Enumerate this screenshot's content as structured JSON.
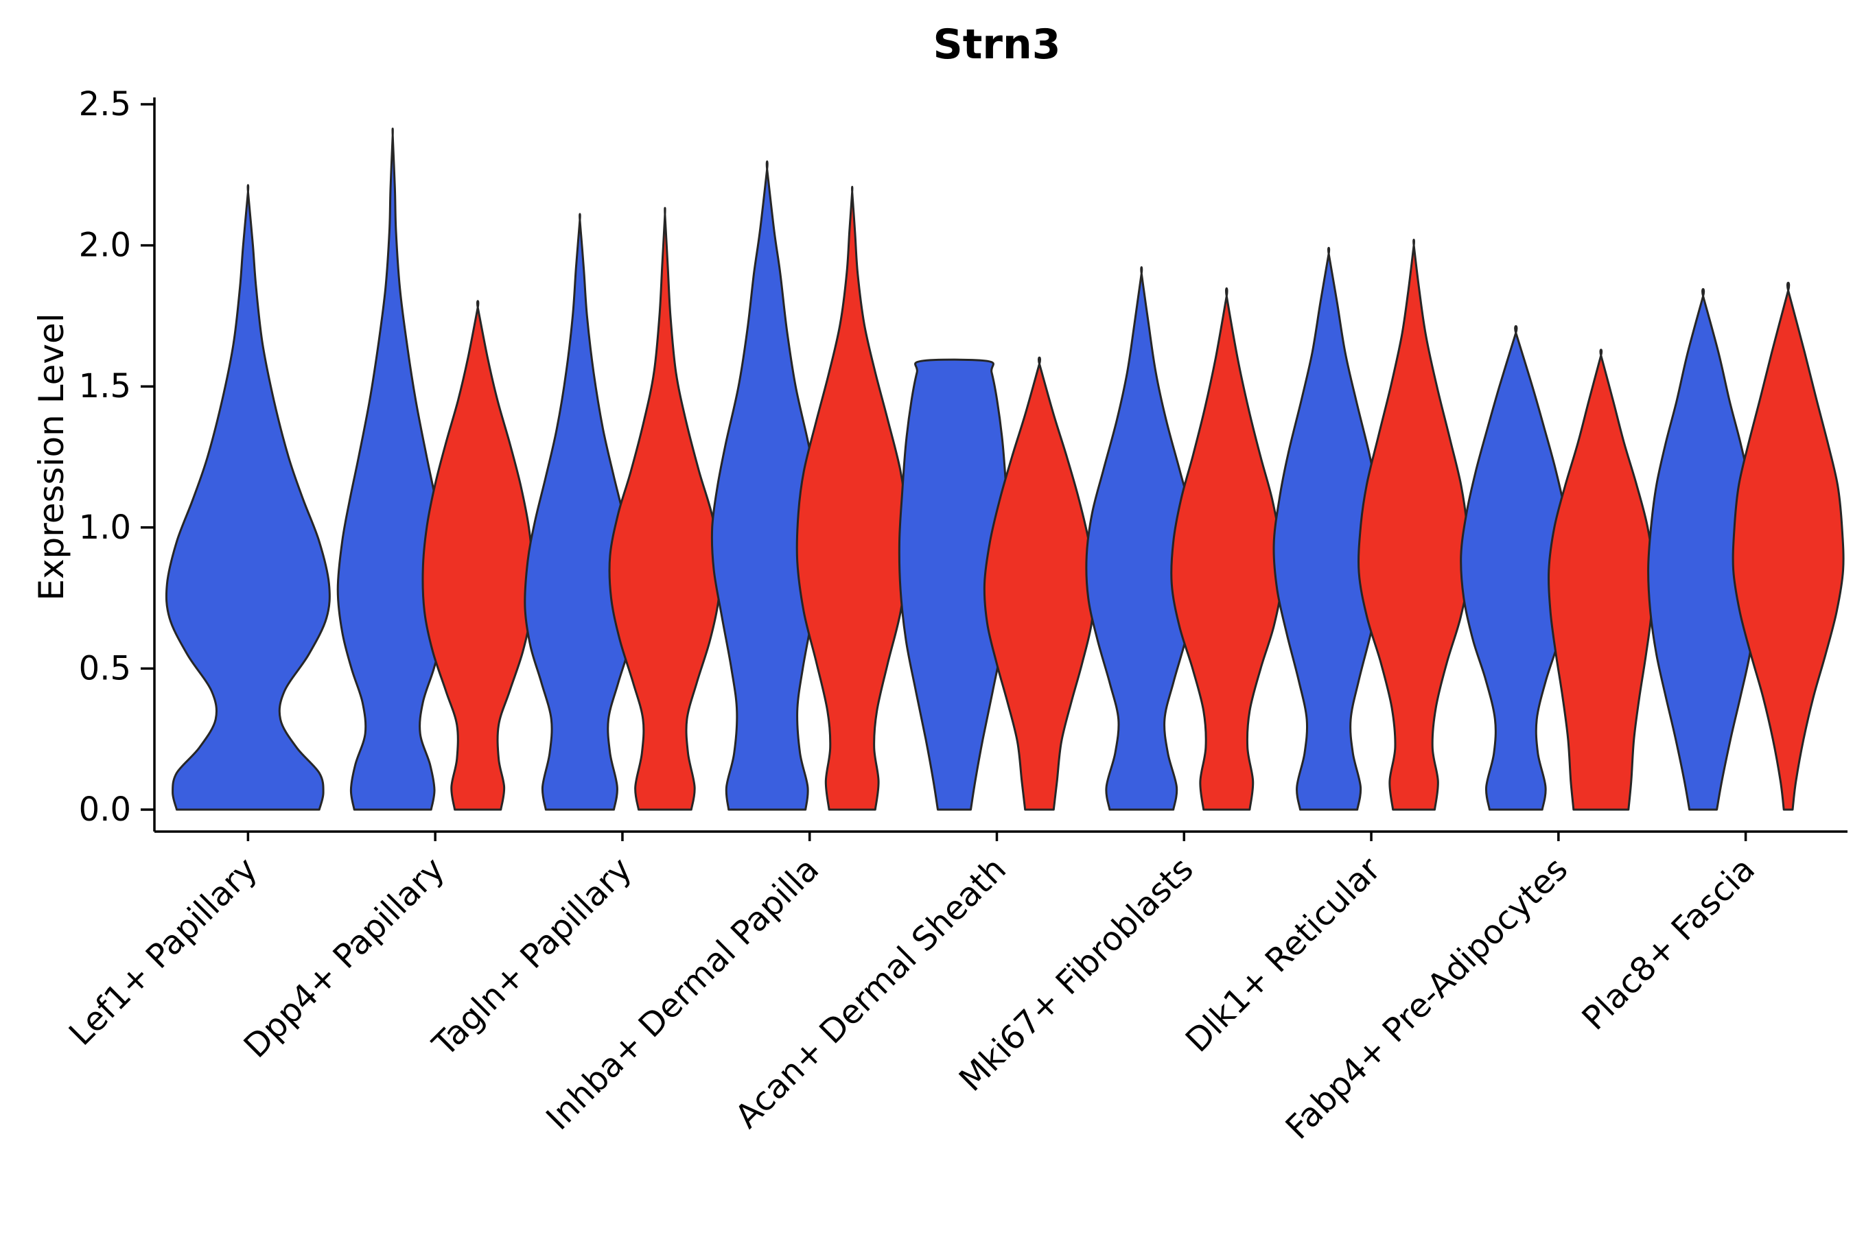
{
  "title": "Strn3",
  "chart_data": {
    "type": "violin",
    "title": "Strn3",
    "ylabel": "Expression Level",
    "xlabel": "",
    "ylim": [
      0,
      2.5
    ],
    "yticks": [
      "0.0",
      "0.5",
      "1.0",
      "1.5",
      "2.0",
      "2.5"
    ],
    "grid": false,
    "legend": "none",
    "x_tick_rotation": 45,
    "categories": [
      "Lef1+ Papillary",
      "Dpp4+ Papillary",
      "Tagln+ Papillary",
      "Inhba+ Dermal Papilla",
      "Acan+ Dermal Sheath",
      "Mki67+ Fibroblasts",
      "Dlk1+ Reticular",
      "Fabp4+ Pre-Adipocytes",
      "Plac8+ Fascia"
    ],
    "series": [
      {
        "name": "blue",
        "color": "#3A5FDF"
      },
      {
        "name": "red",
        "color": "#EE3124"
      }
    ],
    "style": {
      "stroke": "#262626",
      "stroke_width": 3,
      "background": "#FFFFFF"
    },
    "violins": [
      {
        "category": "Lef1+ Papillary",
        "series": "blue",
        "cat_index": 0,
        "side": "center",
        "max": 2.19,
        "profile": [
          [
            0,
            0.88
          ],
          [
            0.06,
            0.93
          ],
          [
            0.13,
            0.88
          ],
          [
            0.22,
            0.6
          ],
          [
            0.32,
            0.4
          ],
          [
            0.42,
            0.45
          ],
          [
            0.55,
            0.75
          ],
          [
            0.68,
            0.97
          ],
          [
            0.8,
            1.0
          ],
          [
            0.95,
            0.88
          ],
          [
            1.1,
            0.68
          ],
          [
            1.25,
            0.5
          ],
          [
            1.45,
            0.32
          ],
          [
            1.65,
            0.18
          ],
          [
            1.85,
            0.1
          ],
          [
            2.0,
            0.06
          ],
          [
            2.19,
            0
          ]
        ]
      },
      {
        "category": "Dpp4+ Papillary",
        "series": "blue",
        "cat_index": 1,
        "side": "left",
        "max": 2.39,
        "profile": [
          [
            0,
            0.7
          ],
          [
            0.07,
            0.76
          ],
          [
            0.16,
            0.68
          ],
          [
            0.27,
            0.5
          ],
          [
            0.38,
            0.55
          ],
          [
            0.5,
            0.75
          ],
          [
            0.63,
            0.92
          ],
          [
            0.78,
            1.0
          ],
          [
            0.95,
            0.92
          ],
          [
            1.1,
            0.78
          ],
          [
            1.25,
            0.62
          ],
          [
            1.45,
            0.42
          ],
          [
            1.65,
            0.26
          ],
          [
            1.85,
            0.13
          ],
          [
            2.05,
            0.06
          ],
          [
            2.2,
            0.04
          ],
          [
            2.39,
            0
          ]
        ]
      },
      {
        "category": "Dpp4+ Papillary",
        "series": "red",
        "cat_index": 1,
        "side": "right",
        "max": 1.78,
        "profile": [
          [
            0,
            0.42
          ],
          [
            0.08,
            0.48
          ],
          [
            0.18,
            0.38
          ],
          [
            0.3,
            0.38
          ],
          [
            0.42,
            0.58
          ],
          [
            0.56,
            0.82
          ],
          [
            0.7,
            0.97
          ],
          [
            0.85,
            1.0
          ],
          [
            1.0,
            0.93
          ],
          [
            1.15,
            0.78
          ],
          [
            1.3,
            0.58
          ],
          [
            1.45,
            0.36
          ],
          [
            1.6,
            0.18
          ],
          [
            1.78,
            0
          ]
        ]
      },
      {
        "category": "Tagln+ Papillary",
        "series": "blue",
        "cat_index": 2,
        "side": "left",
        "max": 2.09,
        "profile": [
          [
            0,
            0.62
          ],
          [
            0.08,
            0.68
          ],
          [
            0.2,
            0.55
          ],
          [
            0.32,
            0.52
          ],
          [
            0.45,
            0.7
          ],
          [
            0.58,
            0.9
          ],
          [
            0.72,
            1.0
          ],
          [
            0.88,
            0.95
          ],
          [
            1.02,
            0.82
          ],
          [
            1.18,
            0.62
          ],
          [
            1.35,
            0.42
          ],
          [
            1.55,
            0.25
          ],
          [
            1.75,
            0.13
          ],
          [
            1.92,
            0.07
          ],
          [
            2.09,
            0
          ]
        ]
      },
      {
        "category": "Tagln+ Papillary",
        "series": "red",
        "cat_index": 2,
        "side": "right",
        "max": 2.11,
        "profile": [
          [
            0,
            0.48
          ],
          [
            0.08,
            0.54
          ],
          [
            0.2,
            0.42
          ],
          [
            0.32,
            0.4
          ],
          [
            0.45,
            0.58
          ],
          [
            0.6,
            0.82
          ],
          [
            0.75,
            0.98
          ],
          [
            0.9,
            1.0
          ],
          [
            1.05,
            0.85
          ],
          [
            1.2,
            0.62
          ],
          [
            1.38,
            0.38
          ],
          [
            1.55,
            0.2
          ],
          [
            1.75,
            0.1
          ],
          [
            1.93,
            0.05
          ],
          [
            2.11,
            0
          ]
        ]
      },
      {
        "category": "Inhba+ Dermal Papilla",
        "series": "blue",
        "cat_index": 3,
        "side": "left",
        "max": 2.27,
        "profile": [
          [
            0,
            0.7
          ],
          [
            0.08,
            0.74
          ],
          [
            0.2,
            0.6
          ],
          [
            0.35,
            0.55
          ],
          [
            0.5,
            0.65
          ],
          [
            0.68,
            0.82
          ],
          [
            0.85,
            0.97
          ],
          [
            1.0,
            1.0
          ],
          [
            1.15,
            0.9
          ],
          [
            1.3,
            0.75
          ],
          [
            1.5,
            0.52
          ],
          [
            1.7,
            0.36
          ],
          [
            1.9,
            0.24
          ],
          [
            2.05,
            0.13
          ],
          [
            2.27,
            0
          ]
        ]
      },
      {
        "category": "Inhba+ Dermal Papilla",
        "series": "red",
        "cat_index": 3,
        "side": "right",
        "max": 2.19,
        "profile": [
          [
            0,
            0.42
          ],
          [
            0.1,
            0.48
          ],
          [
            0.22,
            0.4
          ],
          [
            0.35,
            0.45
          ],
          [
            0.52,
            0.65
          ],
          [
            0.7,
            0.88
          ],
          [
            0.88,
            1.0
          ],
          [
            1.05,
            0.98
          ],
          [
            1.2,
            0.88
          ],
          [
            1.38,
            0.65
          ],
          [
            1.55,
            0.42
          ],
          [
            1.72,
            0.22
          ],
          [
            1.9,
            0.1
          ],
          [
            2.05,
            0.05
          ],
          [
            2.19,
            0
          ]
        ]
      },
      {
        "category": "Acan+ Dermal Sheath",
        "series": "blue",
        "cat_index": 4,
        "side": "left",
        "max": 1.59,
        "profile": [
          [
            0,
            0.3
          ],
          [
            0.1,
            0.38
          ],
          [
            0.25,
            0.52
          ],
          [
            0.42,
            0.7
          ],
          [
            0.6,
            0.88
          ],
          [
            0.78,
            0.98
          ],
          [
            0.95,
            1.0
          ],
          [
            1.12,
            0.95
          ],
          [
            1.3,
            0.88
          ],
          [
            1.45,
            0.78
          ],
          [
            1.55,
            0.68
          ],
          [
            1.59,
            0.6
          ]
        ]
      },
      {
        "category": "Acan+ Dermal Sheath",
        "series": "red",
        "cat_index": 4,
        "side": "right",
        "max": 1.58,
        "profile": [
          [
            0,
            0.26
          ],
          [
            0.1,
            0.32
          ],
          [
            0.24,
            0.4
          ],
          [
            0.38,
            0.58
          ],
          [
            0.52,
            0.78
          ],
          [
            0.66,
            0.95
          ],
          [
            0.8,
            1.0
          ],
          [
            0.95,
            0.9
          ],
          [
            1.1,
            0.72
          ],
          [
            1.25,
            0.5
          ],
          [
            1.4,
            0.26
          ],
          [
            1.58,
            0
          ]
        ]
      },
      {
        "category": "Mki67+ Fibroblasts",
        "series": "blue",
        "cat_index": 5,
        "side": "left",
        "max": 1.9,
        "profile": [
          [
            0,
            0.58
          ],
          [
            0.08,
            0.64
          ],
          [
            0.2,
            0.48
          ],
          [
            0.32,
            0.42
          ],
          [
            0.45,
            0.58
          ],
          [
            0.6,
            0.8
          ],
          [
            0.75,
            0.97
          ],
          [
            0.9,
            1.0
          ],
          [
            1.05,
            0.9
          ],
          [
            1.2,
            0.7
          ],
          [
            1.38,
            0.45
          ],
          [
            1.55,
            0.26
          ],
          [
            1.72,
            0.13
          ],
          [
            1.9,
            0
          ]
        ]
      },
      {
        "category": "Mki67+ Fibroblasts",
        "series": "red",
        "cat_index": 5,
        "side": "right",
        "max": 1.82,
        "profile": [
          [
            0,
            0.42
          ],
          [
            0.1,
            0.48
          ],
          [
            0.22,
            0.38
          ],
          [
            0.35,
            0.42
          ],
          [
            0.5,
            0.62
          ],
          [
            0.65,
            0.86
          ],
          [
            0.8,
            1.0
          ],
          [
            0.95,
            0.97
          ],
          [
            1.1,
            0.83
          ],
          [
            1.25,
            0.62
          ],
          [
            1.42,
            0.4
          ],
          [
            1.6,
            0.2
          ],
          [
            1.82,
            0
          ]
        ]
      },
      {
        "category": "Dlk1+ Reticular",
        "series": "blue",
        "cat_index": 6,
        "side": "left",
        "max": 1.97,
        "profile": [
          [
            0,
            0.52
          ],
          [
            0.08,
            0.58
          ],
          [
            0.2,
            0.44
          ],
          [
            0.32,
            0.4
          ],
          [
            0.46,
            0.55
          ],
          [
            0.62,
            0.76
          ],
          [
            0.78,
            0.94
          ],
          [
            0.94,
            1.0
          ],
          [
            1.1,
            0.9
          ],
          [
            1.26,
            0.74
          ],
          [
            1.45,
            0.5
          ],
          [
            1.62,
            0.3
          ],
          [
            1.8,
            0.15
          ],
          [
            1.97,
            0
          ]
        ]
      },
      {
        "category": "Dlk1+ Reticular",
        "series": "red",
        "cat_index": 6,
        "side": "right",
        "max": 2.0,
        "profile": [
          [
            0,
            0.38
          ],
          [
            0.1,
            0.44
          ],
          [
            0.22,
            0.34
          ],
          [
            0.36,
            0.4
          ],
          [
            0.52,
            0.6
          ],
          [
            0.68,
            0.85
          ],
          [
            0.84,
            1.0
          ],
          [
            1.0,
            0.97
          ],
          [
            1.15,
            0.86
          ],
          [
            1.32,
            0.65
          ],
          [
            1.5,
            0.42
          ],
          [
            1.68,
            0.22
          ],
          [
            1.84,
            0.1
          ],
          [
            2.0,
            0
          ]
        ]
      },
      {
        "category": "Fabp4+ Pre-Adipocytes",
        "series": "blue",
        "cat_index": 7,
        "side": "left",
        "max": 1.69,
        "profile": [
          [
            0,
            0.48
          ],
          [
            0.08,
            0.54
          ],
          [
            0.2,
            0.4
          ],
          [
            0.32,
            0.38
          ],
          [
            0.46,
            0.55
          ],
          [
            0.6,
            0.78
          ],
          [
            0.75,
            0.95
          ],
          [
            0.9,
            1.0
          ],
          [
            1.05,
            0.9
          ],
          [
            1.2,
            0.73
          ],
          [
            1.35,
            0.52
          ],
          [
            1.5,
            0.3
          ],
          [
            1.69,
            0
          ]
        ]
      },
      {
        "category": "Fabp4+ Pre-Adipocytes",
        "series": "red",
        "cat_index": 7,
        "side": "right",
        "max": 1.61,
        "profile": [
          [
            0,
            0.5
          ],
          [
            0.1,
            0.55
          ],
          [
            0.25,
            0.6
          ],
          [
            0.4,
            0.7
          ],
          [
            0.55,
            0.82
          ],
          [
            0.7,
            0.92
          ],
          [
            0.85,
            0.95
          ],
          [
            1.0,
            0.85
          ],
          [
            1.15,
            0.65
          ],
          [
            1.3,
            0.42
          ],
          [
            1.45,
            0.22
          ],
          [
            1.61,
            0
          ]
        ]
      },
      {
        "category": "Plac8+ Fascia",
        "series": "blue",
        "cat_index": 8,
        "side": "left",
        "max": 1.82,
        "profile": [
          [
            0,
            0.25
          ],
          [
            0.1,
            0.34
          ],
          [
            0.25,
            0.5
          ],
          [
            0.4,
            0.68
          ],
          [
            0.55,
            0.85
          ],
          [
            0.7,
            0.96
          ],
          [
            0.85,
            1.0
          ],
          [
            1.0,
            0.95
          ],
          [
            1.15,
            0.85
          ],
          [
            1.3,
            0.68
          ],
          [
            1.45,
            0.48
          ],
          [
            1.62,
            0.28
          ],
          [
            1.82,
            0
          ]
        ]
      },
      {
        "category": "Plac8+ Fascia",
        "series": "red",
        "cat_index": 8,
        "side": "right",
        "max": 1.84,
        "profile": [
          [
            0,
            0.08
          ],
          [
            0.1,
            0.14
          ],
          [
            0.25,
            0.28
          ],
          [
            0.4,
            0.46
          ],
          [
            0.55,
            0.68
          ],
          [
            0.7,
            0.88
          ],
          [
            0.85,
            1.0
          ],
          [
            1.0,
            0.98
          ],
          [
            1.15,
            0.9
          ],
          [
            1.3,
            0.72
          ],
          [
            1.45,
            0.52
          ],
          [
            1.62,
            0.3
          ],
          [
            1.84,
            0
          ]
        ]
      }
    ]
  }
}
